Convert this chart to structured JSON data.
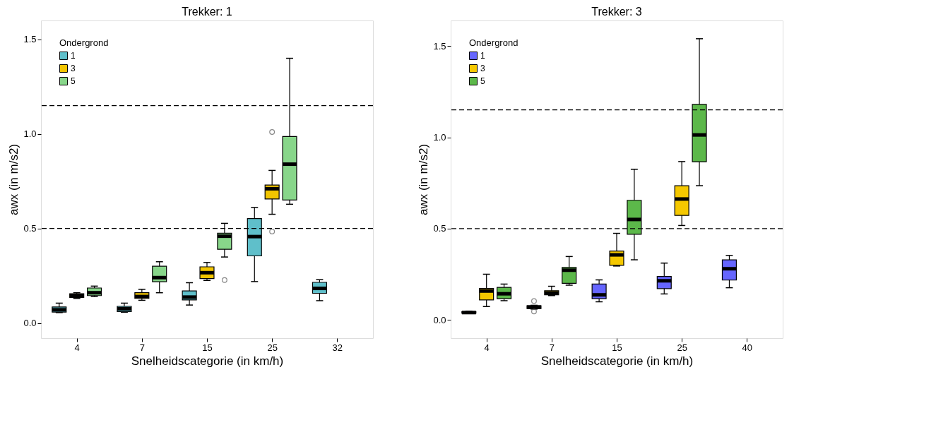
{
  "chart_data": [
    {
      "type": "box",
      "title": "Trekker: 1",
      "xlabel": "Snelheidscategorie (in km/h)",
      "ylabel": "awx (in m/s2)",
      "legend_title": "Ondergrond",
      "legend": "top left",
      "grid": false,
      "categories": [
        "4",
        "7",
        "15",
        "25",
        "32"
      ],
      "ylim": [
        -0.08,
        1.6
      ],
      "yticks": [
        {
          "value": 0,
          "label": "0.0"
        },
        {
          "value": 0.5,
          "label": "0.5"
        },
        {
          "value": 1,
          "label": "1.0"
        },
        {
          "value": 1.5,
          "label": "1.5"
        }
      ],
      "ref_lines": [
        {
          "axis": "y",
          "value": 0.5,
          "line_style": "dashed"
        },
        {
          "axis": "y",
          "value": 1.15,
          "line_style": "dashed"
        }
      ],
      "series": [
        {
          "name": "1",
          "color": "#5fbfca",
          "boxes": [
            {
              "low": 0.055,
              "q1": 0.058,
              "median": 0.07,
              "q3": 0.085,
              "high": 0.105
            },
            {
              "low": 0.057,
              "q1": 0.06,
              "median": 0.075,
              "q3": 0.088,
              "high": 0.105
            },
            {
              "low": 0.095,
              "q1": 0.122,
              "median": 0.137,
              "q3": 0.17,
              "high": 0.213
            },
            {
              "low": 0.219,
              "q1": 0.355,
              "median": 0.457,
              "q3": 0.552,
              "high": 0.611
            },
            {
              "low": 0.118,
              "q1": 0.157,
              "median": 0.183,
              "q3": 0.215,
              "high": 0.229
            }
          ]
        },
        {
          "name": "3",
          "color": "#f2c500",
          "boxes": [
            {
              "low": 0.13,
              "q1": 0.135,
              "median": 0.145,
              "q3": 0.155,
              "high": 0.16
            },
            {
              "low": 0.12,
              "q1": 0.13,
              "median": 0.14,
              "q3": 0.16,
              "high": 0.178
            },
            {
              "low": 0.225,
              "q1": 0.235,
              "median": 0.266,
              "q3": 0.297,
              "high": 0.32
            },
            {
              "low": 0.575,
              "q1": 0.656,
              "median": 0.71,
              "q3": 0.73,
              "high": 0.807,
              "outliers": [
                1.01,
                0.484
              ]
            },
            null
          ]
        },
        {
          "name": "5",
          "color": "#88d68a",
          "boxes": [
            {
              "low": 0.14,
              "q1": 0.145,
              "median": 0.16,
              "q3": 0.185,
              "high": 0.195
            },
            {
              "low": 0.16,
              "q1": 0.218,
              "median": 0.24,
              "q3": 0.3,
              "high": 0.324
            },
            {
              "low": 0.349,
              "q1": 0.39,
              "median": 0.459,
              "q3": 0.475,
              "high": 0.527,
              "outliers": [
                0.227
              ]
            },
            {
              "low": 0.628,
              "q1": 0.65,
              "median": 0.84,
              "q3": 0.986,
              "high": 1.4
            },
            null
          ]
        }
      ]
    },
    {
      "type": "box",
      "title": "Trekker: 3",
      "xlabel": "Snelheidscategorie (in km/h)",
      "ylabel": "awx (in m/s2)",
      "legend_title": "Ondergrond",
      "legend": "top left",
      "grid": false,
      "categories": [
        "4",
        "7",
        "15",
        "25",
        "40"
      ],
      "ylim": [
        -0.1,
        1.64
      ],
      "yticks": [
        {
          "value": 0,
          "label": "0.0"
        },
        {
          "value": 0.5,
          "label": "0.5"
        },
        {
          "value": 1,
          "label": "1.0"
        },
        {
          "value": 1.5,
          "label": "1.5"
        }
      ],
      "ref_lines": [
        {
          "axis": "y",
          "value": 0.5,
          "line_style": "dashed"
        },
        {
          "axis": "y",
          "value": 1.15,
          "line_style": "dashed"
        }
      ],
      "series": [
        {
          "name": "1",
          "color": "#6666ff",
          "boxes": [
            {
              "low": 0.035,
              "q1": 0.037,
              "median": 0.04,
              "q3": 0.045,
              "high": 0.047
            },
            {
              "low": 0.059,
              "q1": 0.062,
              "median": 0.07,
              "q3": 0.077,
              "high": 0.08,
              "outliers": [
                0.103,
                0.046
              ]
            },
            {
              "low": 0.099,
              "q1": 0.116,
              "median": 0.137,
              "q3": 0.196,
              "high": 0.219
            },
            {
              "low": 0.142,
              "q1": 0.171,
              "median": 0.214,
              "q3": 0.238,
              "high": 0.311
            },
            {
              "low": 0.176,
              "q1": 0.218,
              "median": 0.28,
              "q3": 0.329,
              "high": 0.353
            }
          ]
        },
        {
          "name": "3",
          "color": "#f5c800",
          "boxes": [
            {
              "low": 0.073,
              "q1": 0.109,
              "median": 0.158,
              "q3": 0.172,
              "high": 0.25
            },
            {
              "low": 0.133,
              "q1": 0.137,
              "median": 0.148,
              "q3": 0.16,
              "high": 0.184
            },
            {
              "low": 0.295,
              "q1": 0.299,
              "median": 0.356,
              "q3": 0.377,
              "high": 0.474
            },
            {
              "low": 0.517,
              "q1": 0.572,
              "median": 0.662,
              "q3": 0.735,
              "high": 0.867
            },
            null
          ]
        },
        {
          "name": "5",
          "color": "#5cb84a",
          "boxes": [
            {
              "low": 0.105,
              "q1": 0.116,
              "median": 0.143,
              "q3": 0.178,
              "high": 0.196
            },
            {
              "low": 0.19,
              "q1": 0.2,
              "median": 0.272,
              "q3": 0.287,
              "high": 0.347
            },
            {
              "low": 0.329,
              "q1": 0.469,
              "median": 0.55,
              "q3": 0.655,
              "high": 0.825
            },
            {
              "low": 0.735,
              "q1": 0.866,
              "median": 1.013,
              "q3": 1.18,
              "high": 1.54
            },
            null
          ]
        }
      ]
    }
  ]
}
